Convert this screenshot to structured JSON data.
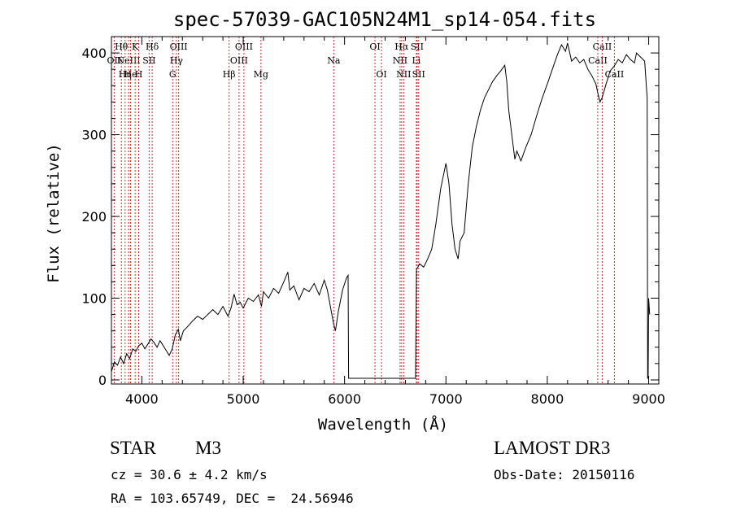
{
  "chart_data": {
    "type": "line",
    "title": "spec-57039-GAC105N24M1_sp14-054.fits",
    "xlabel": "Wavelength (Å)",
    "ylabel": "Flux (relative)",
    "xlim": [
      3700,
      9100
    ],
    "ylim": [
      -5,
      420
    ],
    "x_ticks": [
      4000,
      5000,
      6000,
      7000,
      8000,
      9000
    ],
    "y_ticks": [
      0,
      100,
      200,
      300,
      400
    ],
    "grid": false,
    "series": [
      {
        "name": "flux",
        "points": [
          [
            3700,
            10
          ],
          [
            3730,
            22
          ],
          [
            3760,
            18
          ],
          [
            3790,
            28
          ],
          [
            3820,
            20
          ],
          [
            3850,
            32
          ],
          [
            3880,
            26
          ],
          [
            3910,
            38
          ],
          [
            3940,
            35
          ],
          [
            3970,
            42
          ],
          [
            4000,
            45
          ],
          [
            4030,
            38
          ],
          [
            4060,
            44
          ],
          [
            4090,
            50
          ],
          [
            4120,
            46
          ],
          [
            4150,
            40
          ],
          [
            4180,
            48
          ],
          [
            4210,
            42
          ],
          [
            4240,
            36
          ],
          [
            4270,
            30
          ],
          [
            4300,
            38
          ],
          [
            4330,
            55
          ],
          [
            4360,
            62
          ],
          [
            4380,
            48
          ],
          [
            4410,
            60
          ],
          [
            4450,
            65
          ],
          [
            4500,
            72
          ],
          [
            4550,
            78
          ],
          [
            4600,
            74
          ],
          [
            4650,
            80
          ],
          [
            4700,
            86
          ],
          [
            4750,
            80
          ],
          [
            4800,
            90
          ],
          [
            4850,
            78
          ],
          [
            4880,
            88
          ],
          [
            4910,
            105
          ],
          [
            4940,
            92
          ],
          [
            4970,
            95
          ],
          [
            5000,
            88
          ],
          [
            5050,
            100
          ],
          [
            5100,
            96
          ],
          [
            5150,
            104
          ],
          [
            5180,
            90
          ],
          [
            5200,
            108
          ],
          [
            5250,
            100
          ],
          [
            5300,
            112
          ],
          [
            5350,
            106
          ],
          [
            5400,
            120
          ],
          [
            5440,
            132
          ],
          [
            5460,
            110
          ],
          [
            5500,
            115
          ],
          [
            5550,
            98
          ],
          [
            5600,
            112
          ],
          [
            5650,
            108
          ],
          [
            5700,
            118
          ],
          [
            5750,
            104
          ],
          [
            5800,
            122
          ],
          [
            5830,
            110
          ],
          [
            5860,
            90
          ],
          [
            5890,
            70
          ],
          [
            5910,
            60
          ],
          [
            5940,
            85
          ],
          [
            5980,
            110
          ],
          [
            6020,
            125
          ],
          [
            6035,
            128
          ],
          [
            6040,
            2
          ],
          [
            6100,
            2
          ],
          [
            6300,
            2
          ],
          [
            6500,
            2
          ],
          [
            6700,
            2
          ],
          [
            6710,
            135
          ],
          [
            6740,
            142
          ],
          [
            6780,
            138
          ],
          [
            6820,
            148
          ],
          [
            6860,
            160
          ],
          [
            6900,
            190
          ],
          [
            6950,
            235
          ],
          [
            7000,
            265
          ],
          [
            7030,
            240
          ],
          [
            7060,
            190
          ],
          [
            7090,
            160
          ],
          [
            7120,
            148
          ],
          [
            7140,
            170
          ],
          [
            7180,
            180
          ],
          [
            7220,
            240
          ],
          [
            7260,
            285
          ],
          [
            7300,
            310
          ],
          [
            7340,
            330
          ],
          [
            7380,
            345
          ],
          [
            7420,
            355
          ],
          [
            7460,
            365
          ],
          [
            7500,
            372
          ],
          [
            7540,
            378
          ],
          [
            7580,
            385
          ],
          [
            7600,
            365
          ],
          [
            7620,
            330
          ],
          [
            7640,
            310
          ],
          [
            7660,
            290
          ],
          [
            7680,
            270
          ],
          [
            7700,
            280
          ],
          [
            7740,
            268
          ],
          [
            7790,
            285
          ],
          [
            7840,
            300
          ],
          [
            7900,
            325
          ],
          [
            7950,
            345
          ],
          [
            8000,
            362
          ],
          [
            8050,
            380
          ],
          [
            8100,
            398
          ],
          [
            8140,
            410
          ],
          [
            8180,
            402
          ],
          [
            8200,
            412
          ],
          [
            8240,
            390
          ],
          [
            8280,
            395
          ],
          [
            8320,
            388
          ],
          [
            8360,
            392
          ],
          [
            8400,
            380
          ],
          [
            8440,
            372
          ],
          [
            8480,
            362
          ],
          [
            8500,
            350
          ],
          [
            8520,
            340
          ],
          [
            8540,
            345
          ],
          [
            8580,
            362
          ],
          [
            8620,
            378
          ],
          [
            8660,
            384
          ],
          [
            8700,
            392
          ],
          [
            8740,
            388
          ],
          [
            8780,
            398
          ],
          [
            8820,
            392
          ],
          [
            8860,
            388
          ],
          [
            8880,
            400
          ],
          [
            8920,
            395
          ],
          [
            8960,
            390
          ],
          [
            8985,
            345
          ],
          [
            8990,
            2
          ],
          [
            8995,
            2
          ],
          [
            9000,
            100
          ],
          [
            9010,
            80
          ]
        ]
      }
    ],
    "lines": [
      {
        "wave": 3727,
        "color": "#cc2a2a",
        "label": "OII",
        "row": 1
      },
      {
        "wave": 3798,
        "color": "#cc2a2a",
        "label": "Hθ",
        "row": 0
      },
      {
        "wave": 3835,
        "color": "#cc2a2a",
        "label": "Hη",
        "row": 2
      },
      {
        "wave": 3869,
        "color": "#cc2a2a",
        "label": "NeIII",
        "row": 1
      },
      {
        "wave": 3889,
        "color": "#cc2a2a",
        "label": "He",
        "row": 2
      },
      {
        "wave": 3934,
        "color": "#cc2a2a",
        "label": "K",
        "row": 0
      },
      {
        "wave": 3969,
        "color": "#cc2a2a",
        "label": "H",
        "row": 2
      },
      {
        "wave": 4072,
        "color": "#cc2a2a",
        "label": "SII",
        "row": 1
      },
      {
        "wave": 4102,
        "color": "#cc2a2a",
        "label": "Hδ",
        "row": 0
      },
      {
        "wave": 4304,
        "color": "#cc2a2a",
        "label": "G",
        "row": 2
      },
      {
        "wave": 4341,
        "color": "#cc2a2a",
        "label": "Hγ",
        "row": 1
      },
      {
        "wave": 4363,
        "color": "#cc2a2a",
        "label": "OIII",
        "row": 0
      },
      {
        "wave": 4861,
        "color": "#cc2a2a",
        "label": "Hβ",
        "row": 2
      },
      {
        "wave": 4959,
        "color": "#cc2a2a",
        "label": "OIII",
        "row": 1
      },
      {
        "wave": 5007,
        "color": "#cc2a2a",
        "label": "OIII",
        "row": 0
      },
      {
        "wave": 5175,
        "color": "#cc2a2a",
        "label": "Mg",
        "row": 2
      },
      {
        "wave": 5893,
        "color": "#cc2a2a",
        "label": "Na",
        "row": 1
      },
      {
        "wave": 6300,
        "color": "#cc2a2a",
        "label": "OI",
        "row": 0
      },
      {
        "wave": 6364,
        "color": "#cc2a2a",
        "label": "OI",
        "row": 2
      },
      {
        "wave": 6548,
        "color": "#cc2a2a",
        "label": "NII",
        "row": 1
      },
      {
        "wave": 6563,
        "color": "#cc2a2a",
        "label": "Hα",
        "row": 0
      },
      {
        "wave": 6583,
        "color": "#cc2a2a",
        "label": "NII",
        "row": 2
      },
      {
        "wave": 6708,
        "color": "#cc2a2a",
        "label": "Li",
        "row": 1
      },
      {
        "wave": 6716,
        "color": "#cc2a2a",
        "label": "SII",
        "row": 0
      },
      {
        "wave": 6731,
        "color": "#cc2a2a",
        "label": "SII",
        "row": 2
      },
      {
        "wave": 8498,
        "color": "#cc2a2a",
        "label": "CaII",
        "row": 1
      },
      {
        "wave": 8542,
        "color": "#cc2a2a",
        "label": "CaII",
        "row": 0
      },
      {
        "wave": 8662,
        "color": "#cc2a2a",
        "label": "CaII",
        "row": 2
      }
    ]
  },
  "info": {
    "class": "STAR",
    "subclass": "M3",
    "cz": "cz = 30.6 ± 4.2 km/s",
    "radec": "RA = 103.65749, DEC =  24.56946",
    "survey": "LAMOST DR3",
    "obsdate": "Obs-Date: 20150116"
  }
}
